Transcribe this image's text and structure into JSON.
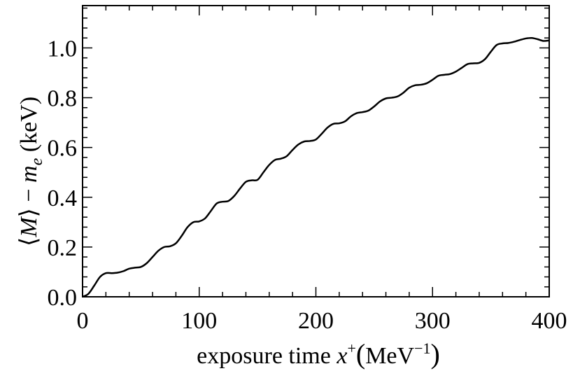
{
  "chart_data": {
    "type": "line",
    "xlabel_parts": {
      "prefix": "exposure  time  ",
      "var": "x",
      "sup": "+",
      "unit_open": "(",
      "unit": "MeV",
      "unit_sup": "−1",
      "unit_close": ")"
    },
    "ylabel_parts": {
      "open": "⟨",
      "var": "M",
      "close": "⟩",
      "minus": " − ",
      "me": "m",
      "me_sub": "e",
      "unit": " (keV)"
    },
    "xlim": [
      0,
      400
    ],
    "ylim": [
      0,
      1.17
    ],
    "x_ticks": [
      0,
      100,
      200,
      300,
      400
    ],
    "x_tick_labels": [
      "0",
      "100",
      "200",
      "300",
      "400"
    ],
    "y_ticks": [
      0.0,
      0.2,
      0.4,
      0.6,
      0.8,
      1.0
    ],
    "y_tick_labels": [
      "0.0",
      "0.2",
      "0.4",
      "0.6",
      "0.8",
      "1.0"
    ],
    "grid": false,
    "series": [
      {
        "color": "#000000",
        "x": [
          0,
          5,
          10,
          15,
          20,
          25,
          30,
          35,
          40,
          45,
          50,
          55,
          60,
          65,
          70,
          75,
          80,
          85,
          90,
          95,
          100,
          105,
          110,
          115,
          120,
          125,
          130,
          135,
          140,
          145,
          150,
          155,
          160,
          165,
          170,
          175,
          180,
          185,
          190,
          195,
          200,
          205,
          210,
          215,
          220,
          225,
          230,
          235,
          240,
          245,
          250,
          255,
          260,
          265,
          270,
          275,
          280,
          285,
          290,
          295,
          300,
          305,
          310,
          315,
          320,
          325,
          330,
          335,
          340,
          345,
          350,
          355,
          360,
          365,
          370,
          375,
          380,
          385,
          390,
          395,
          400
        ],
        "y": [
          0.0,
          0.012,
          0.045,
          0.08,
          0.095,
          0.095,
          0.097,
          0.103,
          0.113,
          0.117,
          0.12,
          0.135,
          0.16,
          0.185,
          0.2,
          0.203,
          0.215,
          0.245,
          0.28,
          0.3,
          0.303,
          0.315,
          0.345,
          0.375,
          0.382,
          0.385,
          0.405,
          0.435,
          0.462,
          0.468,
          0.47,
          0.5,
          0.53,
          0.55,
          0.555,
          0.565,
          0.59,
          0.612,
          0.624,
          0.626,
          0.632,
          0.655,
          0.68,
          0.695,
          0.697,
          0.705,
          0.725,
          0.738,
          0.742,
          0.748,
          0.765,
          0.785,
          0.797,
          0.8,
          0.805,
          0.82,
          0.84,
          0.85,
          0.852,
          0.858,
          0.872,
          0.888,
          0.892,
          0.895,
          0.905,
          0.92,
          0.935,
          0.938,
          0.94,
          0.955,
          0.985,
          1.012,
          1.018,
          1.02,
          1.025,
          1.032,
          1.038,
          1.04,
          1.035,
          1.028,
          1.03
        ]
      }
    ]
  }
}
